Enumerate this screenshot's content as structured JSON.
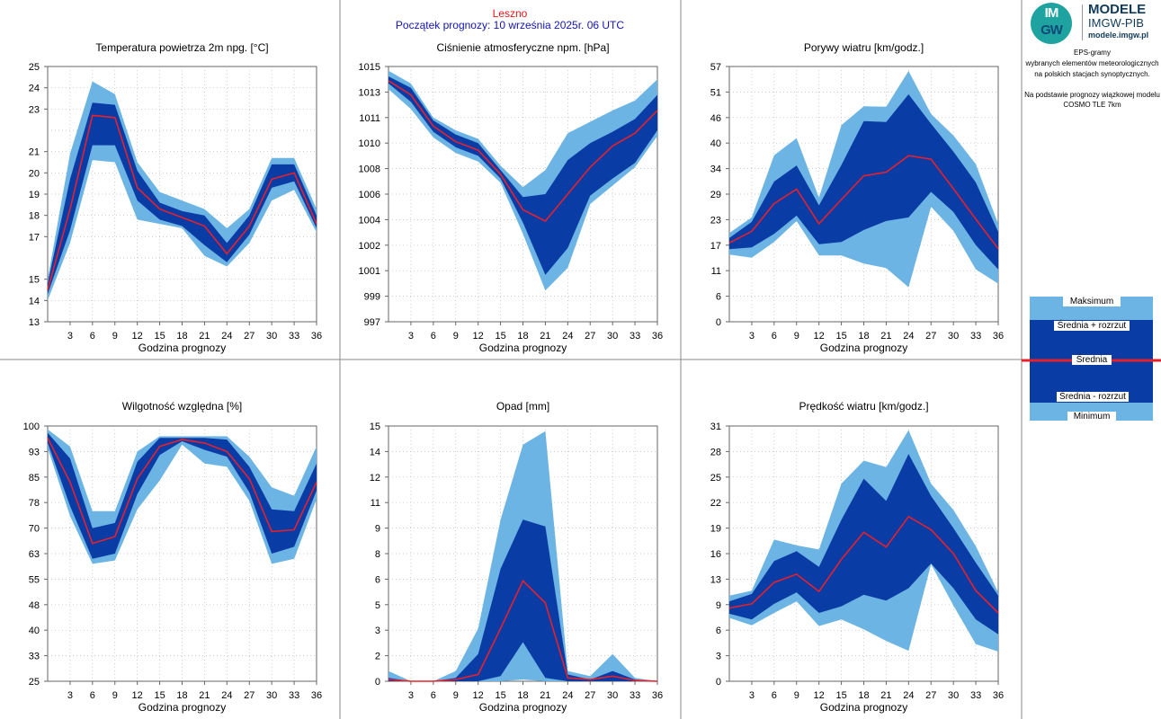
{
  "header": {
    "station": "Leszno",
    "forecast_start": "Początek prognozy: 10 września 2025r. 06 UTC"
  },
  "logo": {
    "mark_top": "IM",
    "mark_bottom": "GW",
    "line1": "MODELE",
    "line2": "IMGW-PIB",
    "line3": "modele.imgw.pl"
  },
  "info": {
    "line1": "EPS-gramy",
    "line2": "wybranych elementów meteorologicznych",
    "line3": "na polskich stacjach  synoptycznych.",
    "line4": "Na podstawie prognozy wiązkowej modelu",
    "line5": "COSMO TLE 7km"
  },
  "legend": {
    "max": "Maksimum",
    "upper": "Średnia + rozrzut",
    "mean": "Średnia",
    "lower": "Średnia - rozrzut",
    "min": "Minimum"
  },
  "colors": {
    "light_band": "#6cb4e4",
    "dark_band": "#0a3ca6",
    "mean_line": "#e8202a",
    "grid": "#b8b8b8"
  },
  "chart_data": [
    {
      "type": "area",
      "title": "Temperatura powietrza 2m npg. [°C]",
      "xlabel": "Godzina prognozy",
      "ylim": [
        13,
        25
      ],
      "yticks": [
        "13",
        "14",
        "15",
        "16",
        "17",
        "18",
        "19",
        "20",
        "21",
        "22",
        "23",
        "24",
        "25"
      ],
      "yticks_printed": [
        "13",
        "14",
        "15",
        "17",
        "18",
        "19",
        "20",
        "21",
        "23",
        "24",
        "25"
      ],
      "xticks": [
        "3",
        "6",
        "9",
        "12",
        "15",
        "18",
        "21",
        "24",
        "27",
        "30",
        "33",
        "36"
      ],
      "x": [
        0,
        3,
        6,
        9,
        12,
        15,
        18,
        21,
        24,
        27,
        30,
        33,
        36
      ],
      "min": [
        14.0,
        16.7,
        20.6,
        20.5,
        17.8,
        17.6,
        17.4,
        16.1,
        15.6,
        16.7,
        18.7,
        19.2,
        17.2
      ],
      "lower": [
        14.3,
        17.3,
        21.3,
        21.3,
        18.7,
        17.8,
        17.5,
        16.6,
        15.8,
        17.1,
        19.3,
        19.6,
        17.4
      ],
      "mean": [
        14.5,
        18.3,
        22.7,
        22.6,
        19.3,
        18.3,
        17.9,
        17.5,
        16.2,
        17.5,
        19.7,
        20.0,
        17.6
      ],
      "upper": [
        14.8,
        19.7,
        23.3,
        23.2,
        20.1,
        18.6,
        18.2,
        18.0,
        16.7,
        18.0,
        20.4,
        20.4,
        18.0
      ],
      "max": [
        15.0,
        20.9,
        24.3,
        23.7,
        20.5,
        19.1,
        18.7,
        18.3,
        17.4,
        18.3,
        20.7,
        20.7,
        18.3
      ]
    },
    {
      "type": "area",
      "title": "Ciśnienie atmosferyczne npm. [hPa]",
      "xlabel": "Godzina prognozy",
      "ylim": [
        997,
        1015
      ],
      "yticks": [
        "997",
        "999",
        "1001",
        "1002",
        "1004",
        "1006",
        "1008",
        "1010",
        "1011",
        "1013",
        "1015"
      ],
      "xticks": [
        "3",
        "6",
        "9",
        "12",
        "15",
        "18",
        "21",
        "24",
        "27",
        "30",
        "33",
        "36"
      ],
      "x": [
        0,
        3,
        6,
        9,
        12,
        15,
        18,
        21,
        24,
        27,
        30,
        33,
        36
      ],
      "min": [
        1013.4,
        1012.0,
        1010.0,
        1008.9,
        1008.3,
        1006.8,
        1003.2,
        999.2,
        1000.8,
        1005.3,
        1006.6,
        1007.9,
        1010.1
      ],
      "lower": [
        1013.8,
        1012.5,
        1010.4,
        1009.3,
        1008.7,
        1007.1,
        1004.0,
        1000.3,
        1002.2,
        1005.9,
        1007.1,
        1008.2,
        1010.5
      ],
      "mean": [
        1014.0,
        1013.0,
        1010.8,
        1009.7,
        1009.1,
        1007.4,
        1004.9,
        1004.1,
        1006.0,
        1007.9,
        1009.4,
        1010.3,
        1011.9
      ],
      "upper": [
        1014.3,
        1013.5,
        1011.2,
        1010.2,
        1009.6,
        1007.7,
        1005.8,
        1006.0,
        1008.4,
        1009.6,
        1010.4,
        1011.3,
        1013.0
      ],
      "max": [
        1014.7,
        1013.8,
        1011.4,
        1010.5,
        1009.9,
        1008.0,
        1006.5,
        1007.7,
        1010.3,
        1011.1,
        1011.9,
        1012.6,
        1014.1
      ]
    },
    {
      "type": "area",
      "title": "Porywy wiatru [km/godz.]",
      "xlabel": "Godzina prognozy",
      "ylim": [
        0,
        57
      ],
      "yticks": [
        "0",
        "6",
        "11",
        "17",
        "23",
        "29",
        "34",
        "40",
        "46",
        "51",
        "57"
      ],
      "xticks": [
        "3",
        "6",
        "9",
        "12",
        "15",
        "18",
        "21",
        "24",
        "27",
        "30",
        "33",
        "36"
      ],
      "x": [
        0,
        3,
        6,
        9,
        12,
        15,
        18,
        21,
        24,
        27,
        30,
        33,
        36
      ],
      "min": [
        15.0,
        14.3,
        17.8,
        22.5,
        14.8,
        14.8,
        13.0,
        12.0,
        7.7,
        25.7,
        20.3,
        11.7,
        8.5
      ],
      "lower": [
        16.2,
        16.6,
        19.6,
        23.7,
        17.3,
        17.8,
        20.5,
        22.5,
        23.3,
        29.0,
        24.5,
        17.1,
        11.7
      ],
      "mean": [
        17.6,
        20.2,
        26.4,
        29.6,
        21.9,
        27.3,
        32.6,
        33.4,
        37.1,
        36.3,
        29.7,
        22.9,
        16.3
      ],
      "upper": [
        18.7,
        22.3,
        31.3,
        34.9,
        26.0,
        35.0,
        44.8,
        44.6,
        50.8,
        44.2,
        38.0,
        31.1,
        20.1
      ],
      "max": [
        19.8,
        23.3,
        37.2,
        41.0,
        27.7,
        43.9,
        48.1,
        48.0,
        56.0,
        46.4,
        41.6,
        35.2,
        21.8
      ]
    },
    {
      "type": "area",
      "title": "Wilgotność względna [%]",
      "xlabel": "Godzina prognozy",
      "ylim": [
        25,
        100
      ],
      "yticks": [
        "25",
        "33",
        "40",
        "48",
        "55",
        "63",
        "70",
        "78",
        "85",
        "93",
        "100"
      ],
      "xticks": [
        "3",
        "6",
        "9",
        "12",
        "15",
        "18",
        "21",
        "24",
        "27",
        "30",
        "33",
        "36"
      ],
      "x": [
        0,
        3,
        6,
        9,
        12,
        15,
        18,
        21,
        24,
        27,
        30,
        33,
        36
      ],
      "min": [
        93.5,
        73.5,
        59.5,
        60.5,
        75.5,
        84.0,
        94.5,
        89.0,
        88.0,
        78.0,
        59.5,
        61.0,
        78.5
      ],
      "lower": [
        95.0,
        76.5,
        61.0,
        62.5,
        80.0,
        91.5,
        95.5,
        93.0,
        91.0,
        80.5,
        62.5,
        64.5,
        81.0
      ],
      "mean": [
        96.5,
        83.5,
        65.5,
        67.5,
        84.5,
        94.0,
        96.0,
        95.0,
        92.5,
        84.5,
        69.0,
        69.5,
        83.5
      ],
      "upper": [
        98.0,
        90.5,
        70.0,
        71.5,
        89.5,
        96.5,
        96.5,
        96.5,
        96.0,
        88.0,
        75.5,
        75.0,
        89.0
      ],
      "max": [
        99.0,
        94.0,
        75.0,
        75.0,
        92.5,
        97.0,
        97.0,
        97.0,
        97.0,
        91.0,
        82.0,
        79.5,
        94.0
      ]
    },
    {
      "type": "area",
      "title": "Opad [mm]",
      "xlabel": "Godzina prognozy",
      "ylim": [
        0,
        15
      ],
      "yticks": [
        "0",
        "2",
        "3",
        "5",
        "6",
        "8",
        "9",
        "11",
        "12",
        "14",
        "15"
      ],
      "xticks": [
        "3",
        "6",
        "9",
        "12",
        "15",
        "18",
        "21",
        "24",
        "27",
        "30",
        "33",
        "36"
      ],
      "x": [
        0,
        3,
        6,
        9,
        12,
        15,
        18,
        21,
        24,
        27,
        30,
        33,
        36
      ],
      "min": [
        0.0,
        0.0,
        0.0,
        0.0,
        0.0,
        0.0,
        0.1,
        0.0,
        0.0,
        0.0,
        0.0,
        0.0,
        0.0
      ],
      "lower": [
        0.0,
        0.0,
        0.0,
        0.0,
        0.0,
        0.3,
        2.3,
        0.2,
        0.0,
        0.0,
        0.0,
        0.0,
        0.0
      ],
      "mean": [
        0.1,
        0.0,
        0.0,
        0.1,
        0.4,
        3.1,
        5.9,
        4.6,
        0.2,
        0.1,
        0.3,
        0.05,
        0.0
      ],
      "upper": [
        0.2,
        0.0,
        0.0,
        0.2,
        1.6,
        6.6,
        9.5,
        9.1,
        0.4,
        0.1,
        0.6,
        0.1,
        0.0
      ],
      "max": [
        0.6,
        0.0,
        0.0,
        0.6,
        3.1,
        9.5,
        13.9,
        14.7,
        0.6,
        0.3,
        1.6,
        0.2,
        0.0
      ]
    },
    {
      "type": "area",
      "title": "Prędkość wiatru [km/godz.]",
      "xlabel": "Godzina prognozy",
      "ylim": [
        0,
        31
      ],
      "yticks": [
        "0",
        "3",
        "6",
        "9",
        "13",
        "16",
        "19",
        "22",
        "25",
        "28",
        "31"
      ],
      "xticks": [
        "3",
        "6",
        "9",
        "12",
        "15",
        "18",
        "21",
        "24",
        "27",
        "30",
        "33",
        "36"
      ],
      "x": [
        0,
        3,
        6,
        9,
        12,
        15,
        18,
        21,
        24,
        27,
        30,
        33,
        36
      ],
      "min": [
        7.7,
        6.8,
        8.3,
        9.7,
        6.7,
        7.5,
        6.3,
        4.9,
        3.7,
        14.2,
        9.2,
        4.5,
        3.6
      ],
      "lower": [
        8.2,
        7.5,
        9.4,
        10.8,
        8.3,
        9.1,
        10.5,
        9.8,
        11.3,
        14.3,
        11.3,
        7.5,
        5.7
      ],
      "mean": [
        8.9,
        9.4,
        12.0,
        13.0,
        10.9,
        14.8,
        18.1,
        16.3,
        20.0,
        18.4,
        15.5,
        11.0,
        8.3
      ],
      "upper": [
        9.7,
        10.6,
        14.6,
        15.8,
        13.9,
        19.6,
        24.6,
        21.9,
        27.6,
        22.5,
        18.6,
        14.4,
        10.4
      ],
      "max": [
        10.4,
        11.0,
        17.2,
        16.5,
        16.0,
        24.0,
        26.8,
        26.0,
        30.5,
        24.0,
        20.8,
        16.4,
        10.8
      ]
    }
  ]
}
